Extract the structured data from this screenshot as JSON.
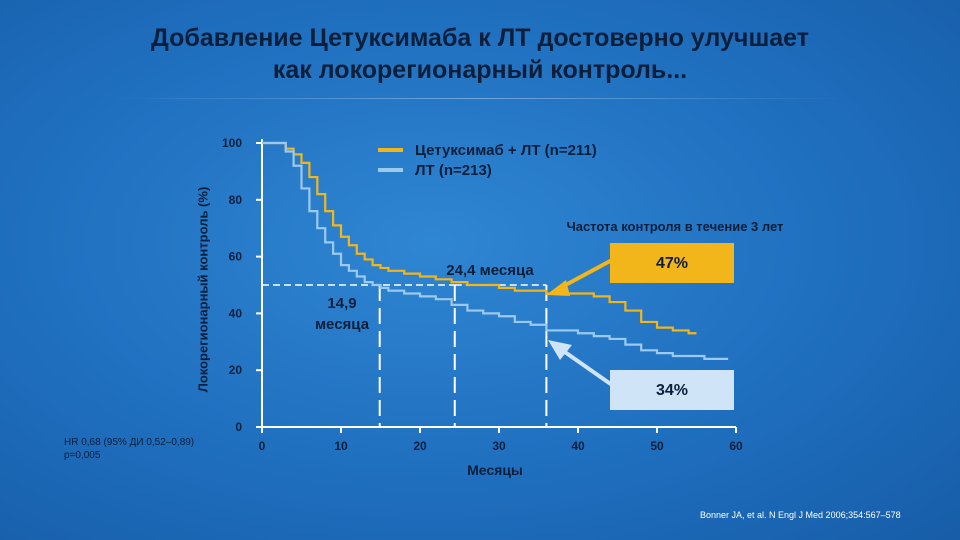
{
  "title": {
    "line1": "Добавление Цетуксимаба к ЛТ достоверно улучшает",
    "line2": "как локорегионарный контроль..."
  },
  "footnote": {
    "hr_line1": "HR 0,68 (95% ДИ 0,52–0,89)",
    "hr_line2": "p=0,005",
    "reference": "Bonner JA, et al. N Engl J Med 2006;354:567–578"
  },
  "colors": {
    "cetuximab": "#f2b51a",
    "rt": "#9cc9ee",
    "text_dark": "#0b1f3a",
    "box_cetuximab": "#f2b51a",
    "box_rt": "#cfe4f7"
  },
  "chart_data": {
    "type": "line",
    "title": "",
    "xlabel": "Месяцы",
    "ylabel": "Локорегионарный контроль (%)",
    "xlim": [
      0,
      60
    ],
    "ylim": [
      0,
      100
    ],
    "xticks": [
      0,
      10,
      20,
      30,
      40,
      50,
      60
    ],
    "yticks": [
      0,
      20,
      40,
      60,
      80,
      100
    ],
    "legend_position": "top-right",
    "series": [
      {
        "name": "Цетуксимаб + ЛТ (n=211)",
        "color": "#f2b51a",
        "step": true,
        "x": [
          0,
          3,
          4,
          5,
          6,
          7,
          8,
          9,
          10,
          11,
          12,
          13,
          14,
          15,
          16,
          18,
          20,
          22,
          24,
          26,
          28,
          30,
          32,
          34,
          36,
          38,
          40,
          42,
          44,
          46,
          48,
          50,
          52,
          54,
          55
        ],
        "y": [
          100,
          98,
          96,
          93,
          88,
          82,
          76,
          71,
          67,
          64,
          61,
          59,
          57,
          56,
          55,
          54,
          53,
          52,
          51,
          50,
          50,
          49,
          48,
          48,
          47,
          47,
          47,
          46,
          44,
          41,
          37,
          35,
          34,
          33,
          33
        ]
      },
      {
        "name": "ЛТ (n=213)",
        "color": "#9cc9ee",
        "step": true,
        "x": [
          0,
          3,
          4,
          5,
          6,
          7,
          8,
          9,
          10,
          11,
          12,
          13,
          14,
          15,
          16,
          18,
          20,
          22,
          24,
          26,
          28,
          30,
          32,
          34,
          36,
          38,
          40,
          42,
          44,
          46,
          48,
          50,
          52,
          54,
          56,
          58,
          59
        ],
        "y": [
          100,
          97,
          92,
          84,
          76,
          70,
          65,
          61,
          57,
          55,
          53,
          51,
          50,
          49,
          48,
          47,
          46,
          45,
          43,
          41,
          40,
          39,
          37,
          36,
          34,
          34,
          33,
          32,
          31,
          29,
          27,
          26,
          25,
          25,
          24,
          24,
          24
        ]
      }
    ],
    "annotations": {
      "subtitle": "Частота контроля в течение 3 лет",
      "median_cetuximab": "24,4 месяца",
      "median_rt_line1": "14,9",
      "median_rt_line2": "месяца",
      "rate_cetuximab": "47%",
      "rate_rt": "34%",
      "median_cetuximab_x": 24.4,
      "median_rt_x": 14.9,
      "three_year_x": 36,
      "median_y": 50
    }
  }
}
